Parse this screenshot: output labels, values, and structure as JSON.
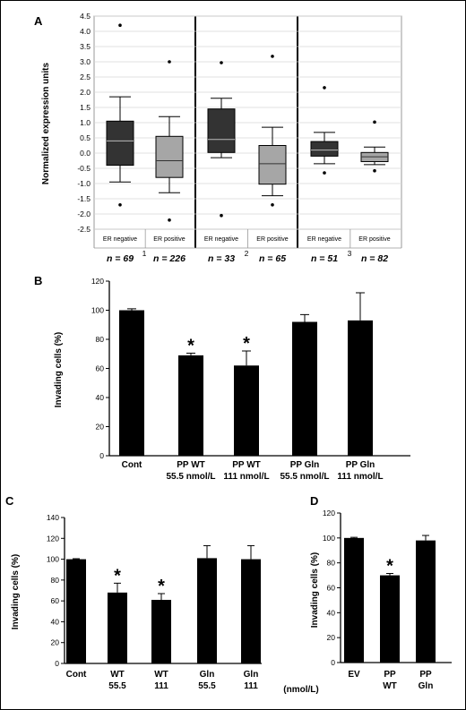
{
  "panel_a": {
    "letter": "A",
    "ylabel": "Normalized expression units",
    "yticks": [
      "4.5",
      "4.0",
      "3.5",
      "3.0",
      "2.5",
      "2.0",
      "1.5",
      "1.0",
      "0.5",
      "0.0",
      "-0.5",
      "-1.0",
      "-1.5",
      "-2.0",
      "-2.5"
    ],
    "group_numbers": [
      "1",
      "2",
      "3"
    ],
    "category_labels": [
      "ER negative",
      "ER positive",
      "ER negative",
      "ER positive",
      "ER negative",
      "ER positive"
    ],
    "n_labels": [
      "n = 69",
      "n = 226",
      "n = 33",
      "n = 65",
      "n = 51",
      "n = 82"
    ],
    "colors": {
      "negative": "#333333",
      "positive": "#a6a6a6"
    }
  },
  "panel_b": {
    "letter": "B",
    "ylabel": "Invading cells (%)",
    "yticks": [
      "0",
      "20",
      "40",
      "60",
      "80",
      "100",
      "120"
    ],
    "cat_lines": [
      [
        "Cont",
        ""
      ],
      [
        "PP WT",
        "55.5 nmol/L"
      ],
      [
        "PP WT",
        "111 nmol/L"
      ],
      [
        "PP Gln",
        "55.5 nmol/L"
      ],
      [
        "PP Gln",
        "111 nmol/L"
      ]
    ]
  },
  "panel_c": {
    "letter": "C",
    "ylabel": "Invading cells (%)",
    "yticks": [
      "0",
      "20",
      "40",
      "60",
      "80",
      "100",
      "120",
      "140"
    ],
    "cat_lines": [
      [
        "Cont",
        ""
      ],
      [
        "WT",
        "55.5"
      ],
      [
        "WT",
        "111"
      ],
      [
        "Gln",
        "55.5"
      ],
      [
        "Gln",
        "111"
      ]
    ],
    "unit_note": "(nmol/L)"
  },
  "panel_d": {
    "letter": "D",
    "ylabel": "Invading cells (%)",
    "yticks": [
      "0",
      "20",
      "40",
      "60",
      "80",
      "100",
      "120"
    ],
    "cat_lines": [
      [
        "EV",
        ""
      ],
      [
        "PP",
        "WT"
      ],
      [
        "PP",
        "Gln"
      ]
    ]
  },
  "chart_data": [
    {
      "type": "box",
      "panel": "A",
      "ylabel": "Normalized expression units",
      "ylim": [
        -2.5,
        4.5
      ],
      "grid": true,
      "categories": [
        "ER negative",
        "ER positive",
        "ER negative",
        "ER positive",
        "ER negative",
        "ER positive"
      ],
      "groups": [
        "1",
        "2",
        "3"
      ],
      "boxes": [
        {
          "whisker_low": -0.95,
          "q1": -0.4,
          "median": 0.4,
          "q3": 1.05,
          "whisker_high": 1.85,
          "outliers": [
            -1.7,
            4.2
          ]
        },
        {
          "whisker_low": -1.3,
          "q1": -0.8,
          "median": -0.25,
          "q3": 0.55,
          "whisker_high": 1.2,
          "outliers": [
            -2.2,
            3.0
          ]
        },
        {
          "whisker_low": -0.15,
          "q1": 0.02,
          "median": 0.45,
          "q3": 1.45,
          "whisker_high": 1.8,
          "outliers": [
            -2.05,
            2.97
          ]
        },
        {
          "whisker_low": -1.4,
          "q1": -1.02,
          "median": -0.35,
          "q3": 0.25,
          "whisker_high": 0.85,
          "outliers": [
            -1.7,
            3.18
          ]
        },
        {
          "whisker_low": -0.35,
          "q1": -0.1,
          "median": 0.1,
          "q3": 0.38,
          "whisker_high": 0.68,
          "outliers": [
            -0.65,
            2.15
          ]
        },
        {
          "whisker_low": -0.38,
          "q1": -0.28,
          "median": -0.12,
          "q3": 0.02,
          "whisker_high": 0.2,
          "outliers": [
            -0.58,
            1.02
          ]
        }
      ]
    },
    {
      "type": "bar",
      "panel": "B",
      "ylabel": "Invading cells (%)",
      "ylim": [
        0,
        120
      ],
      "categories": [
        "Cont",
        "PP WT 55.5 nmol/L",
        "PP WT 111 nmol/L",
        "PP Gln 55.5 nmol/L",
        "PP Gln 111 nmol/L"
      ],
      "values": [
        100,
        69,
        62,
        92,
        93
      ],
      "errors": [
        1,
        1.5,
        10,
        5,
        19
      ],
      "significant": [
        false,
        true,
        true,
        false,
        false
      ]
    },
    {
      "type": "bar",
      "panel": "C",
      "ylabel": "Invading cells (%)",
      "ylim": [
        0,
        140
      ],
      "categories": [
        "Cont",
        "WT 55.5",
        "WT 111",
        "Gln 55.5",
        "Gln 111"
      ],
      "values": [
        100,
        68,
        61,
        101,
        100
      ],
      "errors": [
        0.5,
        9,
        6,
        12,
        13
      ],
      "significant": [
        false,
        true,
        true,
        false,
        false
      ]
    },
    {
      "type": "bar",
      "panel": "D",
      "ylabel": "Invading cells (%)",
      "ylim": [
        0,
        120
      ],
      "categories": [
        "EV",
        "PP WT",
        "PP Gln"
      ],
      "values": [
        100,
        70,
        98
      ],
      "errors": [
        0.5,
        1.5,
        4
      ],
      "significant": [
        false,
        true,
        false
      ]
    }
  ]
}
